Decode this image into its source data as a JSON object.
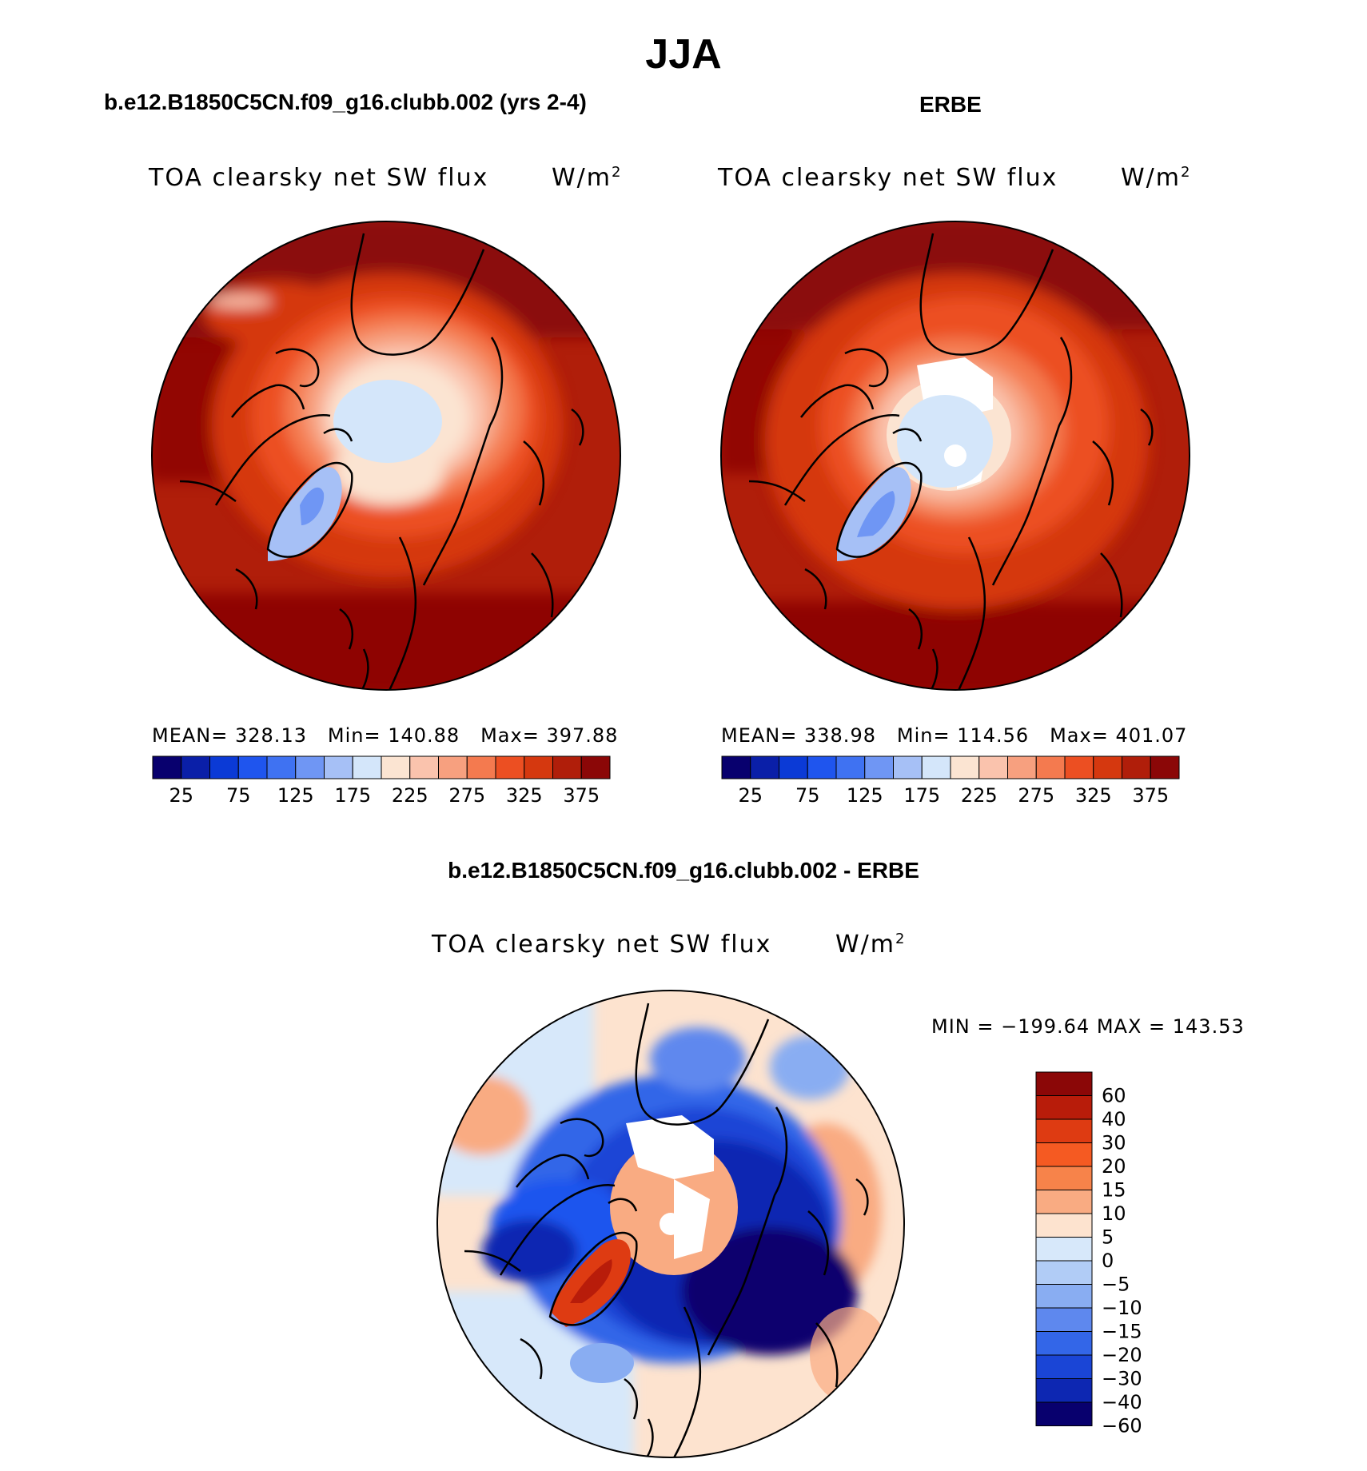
{
  "title": "JJA",
  "panels": {
    "model": {
      "header": "b.e12.B1850C5CN.f09_g16.clubb.002 (yrs 2-4)",
      "variable": "TOA clearsky net SW flux",
      "units": "W/m",
      "units_exp": "2",
      "stats": {
        "mean_label": "MEAN=",
        "mean": "328.13",
        "min_label": "Min=",
        "min": "140.88",
        "max_label": "Max=",
        "max": "397.88"
      }
    },
    "obs": {
      "header": "ERBE",
      "variable": "TOA clearsky net SW flux",
      "units": "W/m",
      "units_exp": "2",
      "stats": {
        "mean_label": "MEAN=",
        "mean": "338.98",
        "min_label": "Min=",
        "min": "114.56",
        "max_label": "Max=",
        "max": "401.07"
      }
    },
    "diff": {
      "header": "b.e12.B1850C5CN.f09_g16.clubb.002 - ERBE",
      "variable": "TOA clearsky net SW flux",
      "units": "W/m",
      "units_exp": "2",
      "minmax": "MIN = −199.64 MAX = 143.53"
    }
  },
  "colorbar_abs": {
    "colors": [
      "#08006e",
      "#0a1fa8",
      "#0b3ad6",
      "#1f55ee",
      "#3f72f2",
      "#6f96f4",
      "#a6c0f6",
      "#d4e6fa",
      "#fbe4d2",
      "#fac3ad",
      "#f7a07f",
      "#f47a4f",
      "#ec4f22",
      "#d5380f",
      "#b01e0a",
      "#8b0707"
    ],
    "labels": [
      "25",
      "75",
      "125",
      "175",
      "225",
      "275",
      "325",
      "375"
    ]
  },
  "colorbar_diff": {
    "colors": [
      "#8b0707",
      "#b81c0a",
      "#de3b12",
      "#f55a22",
      "#f7834a",
      "#f9ab82",
      "#fde3cf",
      "#d7e8fa",
      "#b1ccf6",
      "#89adf2",
      "#5e88ee",
      "#3366e8",
      "#1a45d6",
      "#0d27b2",
      "#08006e"
    ],
    "labels": [
      "60",
      "40",
      "30",
      "20",
      "15",
      "10",
      "5",
      "0",
      "−5",
      "−10",
      "−15",
      "−20",
      "−30",
      "−40",
      "−60"
    ]
  }
}
